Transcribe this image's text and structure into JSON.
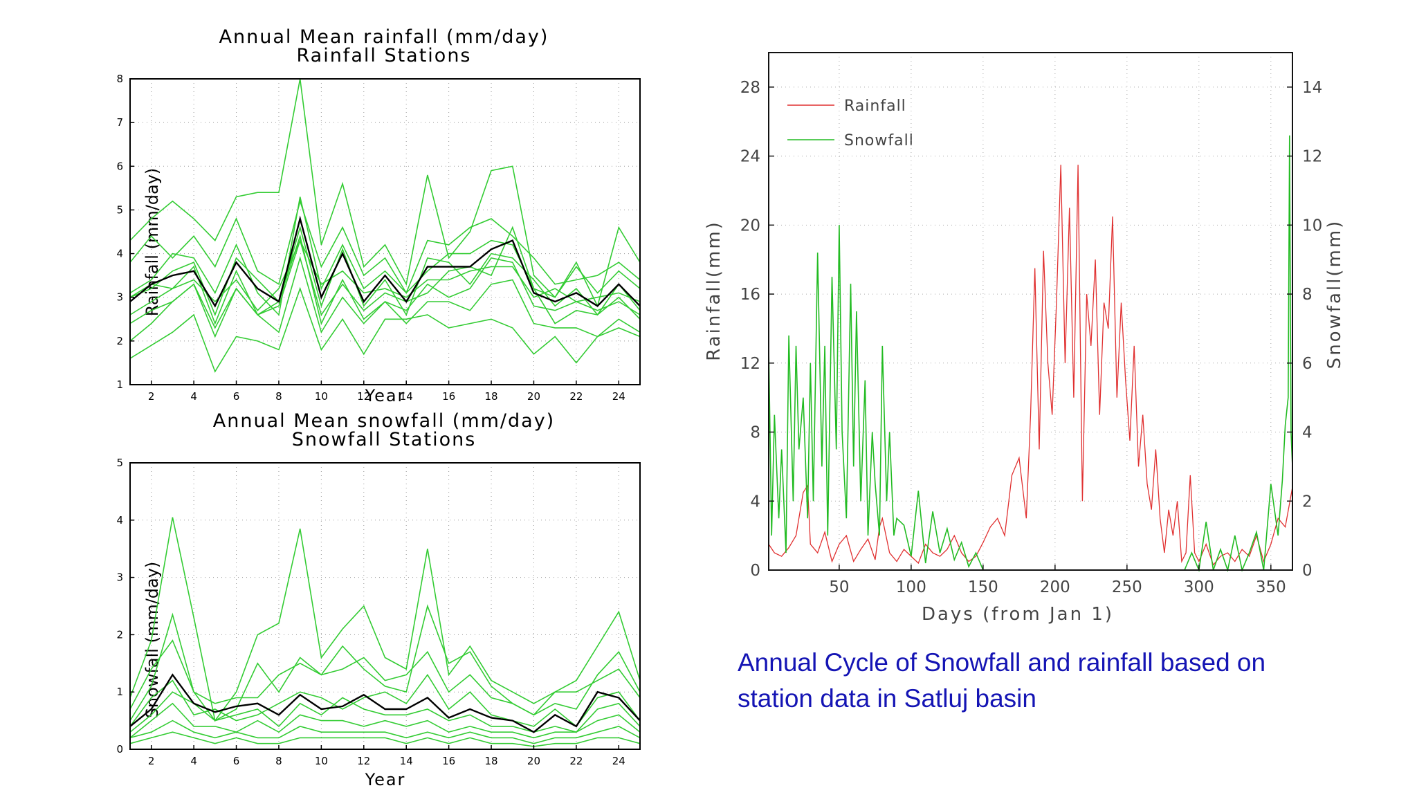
{
  "caption": "Annual Cycle of Snowfall and rainfall based on station data in Satluj basin",
  "colors": {
    "station": "#33cc33",
    "mean": "#000000",
    "rain": "#e03030",
    "snow": "#22bb22",
    "caption": "#1414b4"
  },
  "chart_data": [
    {
      "type": "line",
      "title": "Annual Mean rainfall (mm/day)",
      "subtitle": "Rainfall Stations",
      "xlabel": "Year",
      "ylabel": "Rainfall (mm/day)",
      "xlim": [
        1,
        25
      ],
      "ylim": [
        1,
        8
      ],
      "xticks": [
        2,
        4,
        6,
        8,
        10,
        12,
        14,
        16,
        18,
        20,
        22,
        24
      ],
      "yticks": [
        1,
        2,
        3,
        4,
        5,
        6,
        7,
        8
      ],
      "grid": true,
      "mean_series": [
        2.9,
        3.3,
        3.5,
        3.6,
        2.8,
        3.8,
        3.2,
        2.9,
        4.8,
        3.0,
        4.0,
        2.9,
        3.5,
        2.9,
        3.7,
        3.7,
        3.7,
        4.1,
        4.3,
        3.1,
        2.9,
        3.1,
        2.8,
        3.3,
        2.8
      ],
      "series": [
        {
          "values": [
            4.3,
            4.8,
            5.2,
            4.8,
            4.3,
            5.3,
            5.4,
            5.4,
            8.0,
            4.2,
            5.6,
            3.7,
            4.2,
            3.3,
            5.8,
            3.9,
            4.5,
            5.9,
            6.0,
            3.5,
            3.0,
            3.8,
            2.8,
            4.6,
            3.8
          ]
        },
        {
          "values": [
            3.8,
            4.4,
            3.9,
            4.4,
            3.7,
            4.8,
            3.6,
            3.3,
            5.2,
            3.7,
            4.6,
            3.5,
            3.9,
            3.1,
            4.3,
            4.2,
            4.6,
            4.8,
            4.4,
            3.9,
            3.3,
            3.4,
            3.5,
            3.8,
            3.4
          ]
        },
        {
          "values": [
            3.1,
            3.4,
            4.0,
            3.9,
            3.1,
            4.2,
            3.1,
            2.6,
            5.3,
            3.2,
            4.2,
            3.2,
            3.6,
            3.1,
            3.6,
            4.0,
            4.0,
            4.3,
            4.2,
            3.2,
            3.0,
            3.7,
            3.1,
            3.6,
            3.2
          ]
        },
        {
          "values": [
            3.0,
            3.2,
            3.6,
            3.8,
            2.6,
            3.9,
            3.4,
            2.9,
            4.6,
            2.8,
            4.1,
            2.8,
            3.4,
            2.6,
            3.9,
            3.8,
            3.3,
            4.0,
            3.9,
            3.4,
            2.8,
            3.2,
            2.6,
            3.3,
            2.7
          ]
        },
        {
          "values": [
            3.0,
            3.3,
            3.2,
            3.4,
            2.9,
            3.4,
            2.7,
            3.2,
            4.3,
            3.3,
            3.6,
            3.1,
            3.2,
            3.0,
            3.4,
            3.4,
            3.6,
            3.7,
            3.7,
            3.0,
            3.2,
            2.9,
            3.0,
            3.1,
            2.9
          ]
        },
        {
          "values": [
            2.6,
            2.9,
            3.2,
            3.7,
            2.4,
            3.6,
            2.6,
            2.9,
            4.4,
            2.4,
            3.4,
            2.5,
            2.9,
            2.7,
            3.3,
            3.0,
            3.2,
            3.9,
            3.8,
            2.8,
            2.7,
            2.9,
            2.7,
            2.9,
            2.6
          ]
        },
        {
          "values": [
            2.4,
            2.7,
            2.9,
            3.3,
            2.3,
            3.2,
            2.6,
            2.8,
            4.3,
            2.6,
            3.3,
            2.7,
            3.1,
            2.9,
            3.1,
            3.6,
            3.7,
            3.5,
            4.6,
            3.2,
            2.4,
            2.7,
            2.6,
            3.0,
            2.5
          ]
        },
        {
          "values": [
            2.0,
            2.4,
            2.9,
            3.3,
            2.1,
            3.2,
            2.6,
            2.2,
            3.9,
            2.2,
            3.0,
            2.4,
            2.9,
            2.4,
            2.9,
            2.9,
            2.7,
            3.3,
            3.4,
            2.4,
            2.3,
            2.3,
            2.1,
            2.5,
            2.2
          ]
        },
        {
          "values": [
            1.6,
            1.9,
            2.2,
            2.6,
            1.3,
            2.1,
            2.0,
            1.8,
            3.2,
            1.8,
            2.5,
            1.7,
            2.5,
            2.5,
            2.6,
            2.3,
            2.4,
            2.5,
            2.3,
            1.7,
            2.1,
            1.5,
            2.1,
            2.3,
            2.1
          ]
        }
      ]
    },
    {
      "type": "line",
      "title": "Annual Mean snowfall (mm/day)",
      "subtitle": "Snowfall Stations",
      "xlabel": "Year",
      "ylabel": "Snowfall (mm/day)",
      "xlim": [
        1,
        25
      ],
      "ylim": [
        0,
        5
      ],
      "xticks": [
        2,
        4,
        6,
        8,
        10,
        12,
        14,
        16,
        18,
        20,
        22,
        24
      ],
      "yticks": [
        0,
        1,
        2,
        3,
        4,
        5
      ],
      "grid": true,
      "mean_series": [
        0.4,
        0.7,
        1.3,
        0.8,
        0.65,
        0.75,
        0.8,
        0.6,
        0.95,
        0.7,
        0.75,
        0.95,
        0.7,
        0.7,
        0.9,
        0.55,
        0.7,
        0.55,
        0.5,
        0.3,
        0.6,
        0.4,
        1.0,
        0.9,
        0.5
      ],
      "series": [
        {
          "values": [
            0.9,
            1.9,
            4.05,
            2.3,
            0.5,
            1.0,
            2.0,
            2.2,
            3.85,
            1.6,
            2.1,
            2.5,
            1.6,
            1.4,
            3.5,
            1.3,
            1.8,
            1.2,
            1.0,
            0.8,
            1.0,
            1.2,
            1.8,
            2.4,
            1.2
          ]
        },
        {
          "values": [
            0.5,
            1.1,
            2.35,
            1.0,
            0.5,
            0.7,
            1.5,
            1.0,
            1.6,
            1.3,
            1.8,
            1.4,
            1.1,
            1.0,
            2.5,
            1.5,
            1.7,
            1.1,
            0.8,
            0.6,
            0.8,
            0.7,
            1.3,
            1.7,
            1.0
          ]
        },
        {
          "values": [
            0.7,
            1.4,
            1.9,
            1.0,
            0.8,
            0.9,
            0.9,
            1.3,
            1.5,
            1.3,
            1.4,
            1.6,
            1.2,
            1.3,
            1.7,
            1.0,
            1.3,
            0.9,
            0.8,
            0.6,
            1.0,
            1.0,
            1.2,
            1.4,
            0.9
          ]
        },
        {
          "values": [
            0.4,
            0.9,
            1.2,
            0.6,
            0.7,
            0.5,
            0.6,
            0.8,
            1.0,
            0.9,
            0.7,
            0.9,
            1.0,
            0.8,
            1.3,
            0.7,
            1.0,
            0.6,
            0.5,
            0.4,
            0.7,
            0.4,
            0.9,
            1.0,
            0.5
          ]
        },
        {
          "values": [
            0.3,
            0.6,
            1.0,
            0.8,
            0.5,
            0.6,
            0.7,
            0.4,
            0.8,
            0.6,
            0.9,
            0.7,
            0.6,
            0.6,
            0.7,
            0.5,
            0.6,
            0.4,
            0.4,
            0.3,
            0.4,
            0.3,
            0.7,
            0.8,
            0.4
          ]
        },
        {
          "values": [
            0.2,
            0.5,
            0.8,
            0.4,
            0.4,
            0.3,
            0.5,
            0.3,
            0.6,
            0.5,
            0.5,
            0.4,
            0.5,
            0.4,
            0.5,
            0.3,
            0.4,
            0.3,
            0.3,
            0.2,
            0.3,
            0.3,
            0.5,
            0.6,
            0.3
          ]
        },
        {
          "values": [
            0.2,
            0.3,
            0.5,
            0.3,
            0.2,
            0.3,
            0.2,
            0.2,
            0.4,
            0.3,
            0.3,
            0.3,
            0.3,
            0.2,
            0.3,
            0.2,
            0.3,
            0.2,
            0.2,
            0.1,
            0.2,
            0.2,
            0.3,
            0.4,
            0.2
          ]
        },
        {
          "values": [
            0.1,
            0.2,
            0.3,
            0.2,
            0.1,
            0.2,
            0.1,
            0.1,
            0.2,
            0.2,
            0.2,
            0.2,
            0.2,
            0.1,
            0.2,
            0.1,
            0.2,
            0.1,
            0.1,
            0.05,
            0.1,
            0.1,
            0.2,
            0.2,
            0.1
          ]
        }
      ]
    },
    {
      "type": "line",
      "xlabel": "Days (from Jan 1)",
      "ylabel": "Rainfall(mm)",
      "y2label": "Snowfall(mm)",
      "xlim": [
        1,
        365
      ],
      "ylim": [
        0,
        30
      ],
      "y2lim": [
        0,
        15
      ],
      "xticks": [
        50,
        100,
        150,
        200,
        250,
        300,
        350
      ],
      "yticks": [
        0,
        4,
        8,
        12,
        16,
        20,
        24,
        28
      ],
      "y2ticks": [
        0,
        2,
        4,
        6,
        8,
        10,
        12,
        14
      ],
      "grid": true,
      "legend_position": "top-left",
      "series": [
        {
          "name": "Rainfall",
          "axis": "left",
          "x": [
            1,
            5,
            10,
            15,
            20,
            25,
            28,
            30,
            35,
            40,
            45,
            50,
            55,
            60,
            65,
            70,
            75,
            78,
            80,
            85,
            90,
            95,
            100,
            105,
            110,
            115,
            120,
            125,
            130,
            135,
            140,
            145,
            150,
            155,
            160,
            165,
            170,
            175,
            180,
            183,
            186,
            189,
            192,
            195,
            198,
            201,
            204,
            207,
            210,
            213,
            216,
            219,
            222,
            225,
            228,
            231,
            234,
            237,
            240,
            243,
            246,
            249,
            252,
            255,
            258,
            261,
            264,
            267,
            270,
            273,
            276,
            279,
            282,
            285,
            288,
            291,
            294,
            297,
            300,
            305,
            310,
            315,
            320,
            325,
            330,
            335,
            340,
            345,
            350,
            355,
            360,
            365
          ],
          "y": [
            1.5,
            1.0,
            0.8,
            1.3,
            2.0,
            4.5,
            4.9,
            1.5,
            1.0,
            2.2,
            0.5,
            1.5,
            2.0,
            0.5,
            1.2,
            1.8,
            0.6,
            2.5,
            3.0,
            1.0,
            0.5,
            1.2,
            0.8,
            0.4,
            1.5,
            1.0,
            0.8,
            1.2,
            2.0,
            1.0,
            0.5,
            0.8,
            1.6,
            2.5,
            3.0,
            2.0,
            5.5,
            6.5,
            3.0,
            9.0,
            17.5,
            7.0,
            18.5,
            12.0,
            9.0,
            15.5,
            23.5,
            12.0,
            21.0,
            10.0,
            23.5,
            4.0,
            16.0,
            13.0,
            18.0,
            9.0,
            15.5,
            14.0,
            20.5,
            10.0,
            15.5,
            11.0,
            7.5,
            13.0,
            6.0,
            9.0,
            5.0,
            3.5,
            7.0,
            3.0,
            1.0,
            3.5,
            2.0,
            4.0,
            0.5,
            1.0,
            5.5,
            1.0,
            0.5,
            1.5,
            0.3,
            0.8,
            1.0,
            0.5,
            1.2,
            0.8,
            2.0,
            0.5,
            1.5,
            3.0,
            2.5,
            4.8
          ]
        },
        {
          "name": "Snowfall",
          "axis": "right",
          "x": [
            1,
            3,
            5,
            8,
            10,
            13,
            15,
            18,
            20,
            22,
            25,
            28,
            30,
            32,
            35,
            38,
            40,
            42,
            45,
            48,
            50,
            52,
            55,
            58,
            60,
            62,
            65,
            68,
            70,
            73,
            75,
            78,
            80,
            83,
            85,
            88,
            90,
            95,
            100,
            105,
            110,
            115,
            120,
            125,
            130,
            135,
            140,
            145,
            150,
            180,
            250,
            290,
            295,
            300,
            305,
            310,
            315,
            320,
            325,
            330,
            335,
            340,
            345,
            350,
            355,
            358,
            360,
            362,
            363,
            364,
            365
          ],
          "y": [
            6.5,
            1.0,
            4.5,
            1.5,
            3.5,
            0.5,
            6.8,
            2.0,
            6.5,
            3.5,
            5.0,
            1.5,
            6.0,
            2.0,
            9.2,
            3.0,
            6.5,
            1.0,
            8.5,
            3.5,
            10.0,
            4.0,
            1.5,
            8.3,
            3.0,
            7.5,
            2.0,
            5.5,
            1.0,
            4.0,
            2.5,
            1.0,
            6.5,
            2.0,
            4.0,
            1.0,
            1.5,
            1.3,
            0.4,
            2.3,
            0.2,
            1.7,
            0.5,
            1.2,
            0.3,
            0.8,
            0.1,
            0.5,
            0.0,
            0.0,
            0.0,
            0.0,
            0.5,
            0.0,
            1.4,
            0.0,
            0.6,
            0.0,
            1.0,
            0.0,
            0.5,
            1.1,
            0.0,
            2.5,
            1.0,
            2.6,
            4.2,
            5.0,
            12.6,
            4.0,
            3.0
          ]
        }
      ]
    }
  ]
}
